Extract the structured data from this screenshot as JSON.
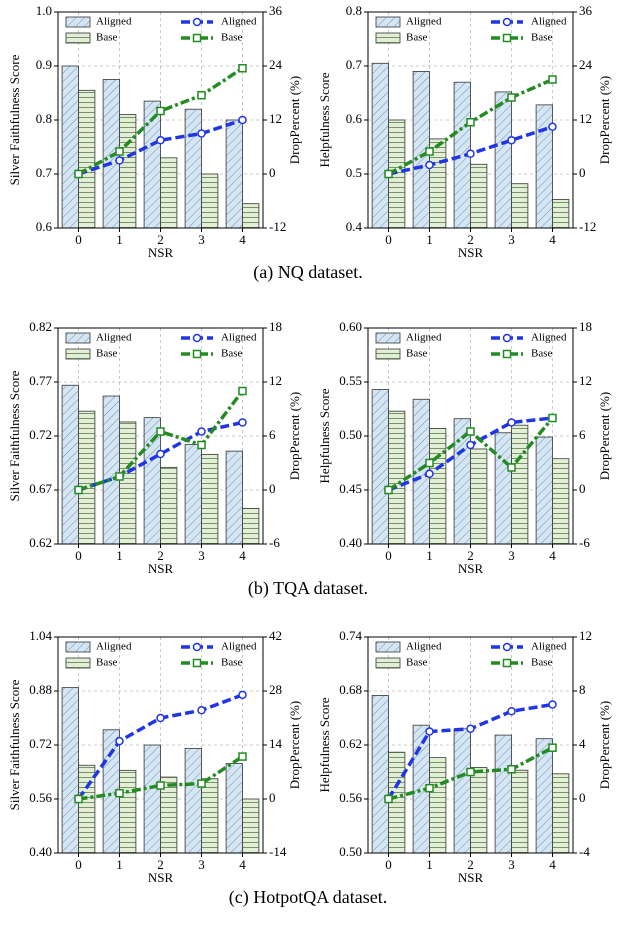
{
  "chart_data": [
    {
      "type": "combo",
      "ylabel": "Silver Faithfulness Score",
      "y2label": "DropPercent (%)",
      "xlabel": "NSR",
      "categories": [
        "0",
        "1",
        "2",
        "3",
        "4"
      ],
      "ylim": [
        0.6,
        1.0
      ],
      "yticks": [
        0.6,
        0.7,
        0.8,
        0.9,
        {
          "value": 1.0,
          "label": "1.0"
        }
      ],
      "y2lim": [
        -12,
        36
      ],
      "y2ticks": [
        -12,
        0,
        12,
        24,
        36
      ],
      "grid": true,
      "legend": "upper left",
      "legend2": "upper right",
      "series": [
        {
          "name": "Aligned",
          "color": "#d4e6f4",
          "hatch": "diagonal",
          "values": [
            0.9,
            0.875,
            0.835,
            0.82,
            0.8
          ]
        },
        {
          "name": "Base",
          "color": "#e2efd6",
          "hatch": "horizontal",
          "values": [
            0.855,
            0.81,
            0.73,
            0.7,
            0.645
          ]
        },
        {
          "name": "Aligned",
          "color": "#1f35e6",
          "axis": "y2",
          "marker": "circle",
          "linestyle": "dashed",
          "values": [
            0,
            3,
            7.5,
            9,
            12
          ]
        },
        {
          "name": "Base",
          "color": "#228b22",
          "axis": "y2",
          "marker": "square",
          "linestyle": "dashdot",
          "values": [
            0,
            5,
            14,
            17.5,
            23.5
          ]
        }
      ]
    },
    {
      "type": "combo",
      "ylabel": "Helpfulness Score",
      "y2label": "DropPercent (%)",
      "xlabel": "NSR",
      "categories": [
        "0",
        "1",
        "2",
        "3",
        "4"
      ],
      "ylim": [
        0.4,
        0.8
      ],
      "yticks": [
        0.4,
        0.5,
        0.6,
        0.7,
        0.8
      ],
      "y2lim": [
        -12,
        36
      ],
      "y2ticks": [
        -12,
        0,
        12,
        24,
        36
      ],
      "grid": true,
      "legend": "upper left",
      "legend2": "upper right",
      "series": [
        {
          "name": "Aligned",
          "color": "#d4e6f4",
          "hatch": "diagonal",
          "values": [
            0.705,
            0.69,
            0.67,
            0.652,
            0.628
          ]
        },
        {
          "name": "Base",
          "color": "#e2efd6",
          "hatch": "horizontal",
          "values": [
            0.6,
            0.565,
            0.518,
            0.482,
            0.453
          ]
        },
        {
          "name": "Aligned",
          "color": "#1f35e6",
          "axis": "y2",
          "marker": "circle",
          "linestyle": "dashed",
          "values": [
            0,
            2,
            4.5,
            7.5,
            10.5
          ]
        },
        {
          "name": "Base",
          "color": "#228b22",
          "axis": "y2",
          "marker": "square",
          "linestyle": "dashdot",
          "values": [
            0,
            5,
            11.5,
            17,
            21
          ]
        }
      ]
    },
    {
      "type": "combo",
      "ylabel": "Silver Faithfulness Score",
      "y2label": "DropPercent (%)",
      "xlabel": "NSR",
      "categories": [
        "0",
        "1",
        "2",
        "3",
        "4"
      ],
      "ylim": [
        0.62,
        0.82
      ],
      "yticks": [
        0.62,
        0.67,
        0.72,
        0.77,
        0.82
      ],
      "y2lim": [
        -6,
        18
      ],
      "y2ticks": [
        -6,
        0,
        6,
        12,
        18
      ],
      "grid": true,
      "legend": "upper left",
      "legend2": "upper right",
      "series": [
        {
          "name": "Aligned",
          "color": "#d4e6f4",
          "hatch": "diagonal",
          "values": [
            0.767,
            0.757,
            0.737,
            0.712,
            0.706
          ]
        },
        {
          "name": "Base",
          "color": "#e2efd6",
          "hatch": "horizontal",
          "values": [
            0.743,
            0.733,
            0.691,
            0.703,
            0.653
          ]
        },
        {
          "name": "Aligned",
          "color": "#1f35e6",
          "axis": "y2",
          "marker": "circle",
          "linestyle": "dashed",
          "values": [
            0,
            1.5,
            4,
            6.5,
            7.5
          ]
        },
        {
          "name": "Base",
          "color": "#228b22",
          "axis": "y2",
          "marker": "square",
          "linestyle": "dashdot",
          "values": [
            0,
            1.5,
            6.5,
            5,
            11
          ]
        }
      ]
    },
    {
      "type": "combo",
      "ylabel": "Helpfulness Score",
      "y2label": "DropPercent (%)",
      "xlabel": "NSR",
      "categories": [
        "0",
        "1",
        "2",
        "3",
        "4"
      ],
      "ylim": [
        0.4,
        0.6
      ],
      "yticks": [
        {
          "value": 0.4,
          "label": "0.40"
        },
        0.45,
        {
          "value": 0.5,
          "label": "0.50"
        },
        0.55,
        {
          "value": 0.6,
          "label": "0.60"
        }
      ],
      "y2lim": [
        -6,
        18
      ],
      "y2ticks": [
        -6,
        0,
        6,
        12,
        18
      ],
      "grid": true,
      "legend": "upper left",
      "legend2": "upper right",
      "series": [
        {
          "name": "Aligned",
          "color": "#d4e6f4",
          "hatch": "diagonal",
          "values": [
            0.543,
            0.534,
            0.516,
            0.503,
            0.499
          ]
        },
        {
          "name": "Base",
          "color": "#e2efd6",
          "hatch": "horizontal",
          "values": [
            0.523,
            0.507,
            0.488,
            0.51,
            0.479
          ]
        },
        {
          "name": "Aligned",
          "color": "#1f35e6",
          "axis": "y2",
          "marker": "circle",
          "linestyle": "dashed",
          "values": [
            0,
            1.8,
            5,
            7.5,
            8
          ]
        },
        {
          "name": "Base",
          "color": "#228b22",
          "axis": "y2",
          "marker": "square",
          "linestyle": "dashdot",
          "values": [
            0,
            3,
            6.5,
            2.5,
            8
          ]
        }
      ]
    },
    {
      "type": "combo",
      "ylabel": "Silver Faithfulness Score",
      "y2label": "DropPercent (%)",
      "xlabel": "NSR",
      "categories": [
        "0",
        "1",
        "2",
        "3",
        "4"
      ],
      "ylim": [
        0.4,
        1.04
      ],
      "yticks": [
        {
          "value": 0.4,
          "label": "0.40"
        },
        0.56,
        0.72,
        0.88,
        1.04
      ],
      "y2lim": [
        -14,
        42
      ],
      "y2ticks": [
        -14,
        0,
        14,
        28,
        42
      ],
      "grid": true,
      "legend": "upper left",
      "legend2": "upper right",
      "series": [
        {
          "name": "Aligned",
          "color": "#d4e6f4",
          "hatch": "diagonal",
          "values": [
            0.89,
            0.765,
            0.72,
            0.71,
            0.665
          ]
        },
        {
          "name": "Base",
          "color": "#e2efd6",
          "hatch": "horizontal",
          "values": [
            0.66,
            0.645,
            0.625,
            0.62,
            0.56
          ]
        },
        {
          "name": "Aligned",
          "color": "#1f35e6",
          "axis": "y2",
          "marker": "circle",
          "linestyle": "dashed",
          "values": [
            0,
            15,
            21,
            23,
            27
          ]
        },
        {
          "name": "Base",
          "color": "#228b22",
          "axis": "y2",
          "marker": "square",
          "linestyle": "dashdot",
          "values": [
            0,
            1.5,
            3.5,
            4,
            11
          ]
        }
      ]
    },
    {
      "type": "combo",
      "ylabel": "Helpfulness Score",
      "y2label": "DropPercent (%)",
      "xlabel": "NSR",
      "categories": [
        "0",
        "1",
        "2",
        "3",
        "4"
      ],
      "ylim": [
        0.5,
        0.74
      ],
      "yticks": [
        {
          "value": 0.5,
          "label": "0.50"
        },
        0.56,
        0.62,
        0.68,
        0.74
      ],
      "y2lim": [
        -4,
        12
      ],
      "y2ticks": [
        -4,
        0,
        4,
        8,
        12
      ],
      "grid": true,
      "legend": "upper left",
      "legend2": "upper right",
      "series": [
        {
          "name": "Aligned",
          "color": "#d4e6f4",
          "hatch": "diagonal",
          "values": [
            0.675,
            0.642,
            0.638,
            0.631,
            0.627
          ]
        },
        {
          "name": "Base",
          "color": "#e2efd6",
          "hatch": "horizontal",
          "values": [
            0.612,
            0.606,
            0.595,
            0.592,
            0.588
          ]
        },
        {
          "name": "Aligned",
          "color": "#1f35e6",
          "axis": "y2",
          "marker": "circle",
          "linestyle": "dashed",
          "values": [
            0,
            5,
            5.2,
            6.5,
            7
          ]
        },
        {
          "name": "Base",
          "color": "#228b22",
          "axis": "y2",
          "marker": "square",
          "linestyle": "dashdot",
          "values": [
            0,
            0.8,
            2,
            2.2,
            3.8
          ]
        }
      ]
    }
  ],
  "captions": [
    "(a)  NQ dataset.",
    "(b)  TQA dataset.",
    "(c)  HotpotQA dataset."
  ]
}
